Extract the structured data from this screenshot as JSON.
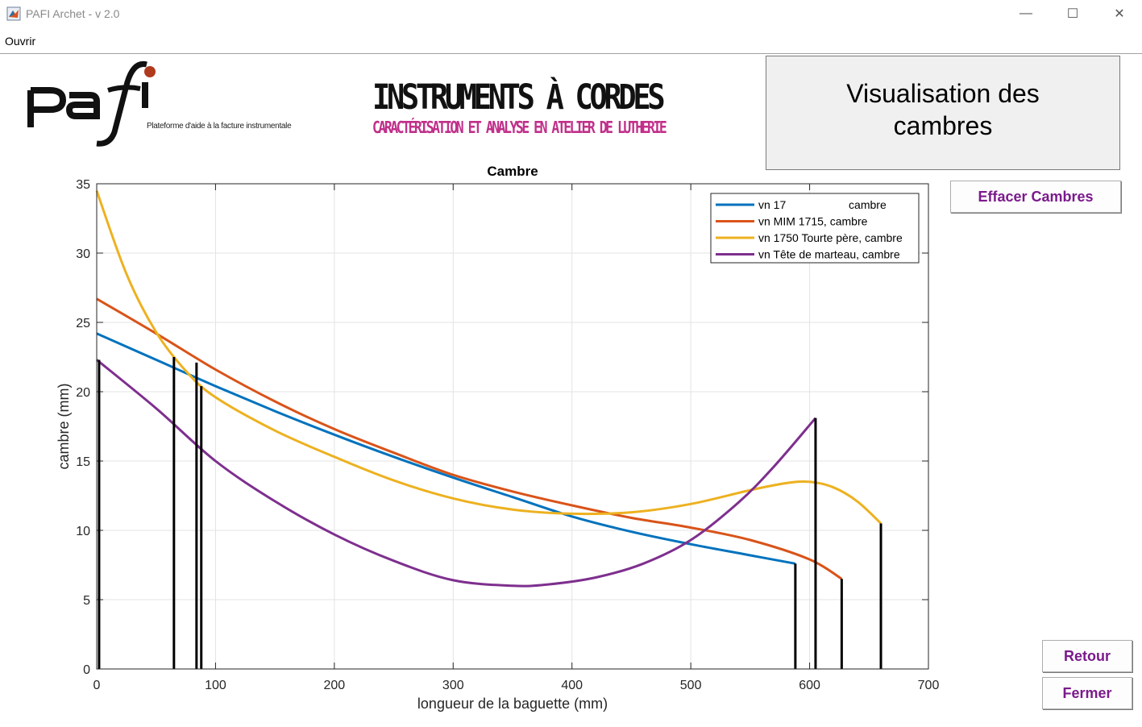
{
  "window": {
    "title": "PAFI Archet - v 2.0",
    "minimize_icon": "minimize-icon",
    "maximize_icon": "maximize-icon",
    "close_icon": "close-icon",
    "minimize_glyph": "—",
    "maximize_glyph": "☐",
    "close_glyph": "✕"
  },
  "menu": {
    "open_label": "Ouvrir"
  },
  "logo": {
    "tagline": "Plateforme d'aide à la facture instrumentale"
  },
  "banner": {
    "title": "INSTRUMENTS À CORDES",
    "subtitle": "CARACTÉRISATION ET ANALYSE EN ATELIER DE LUTHERIE"
  },
  "panel": {
    "title": "Visualisation des cambres"
  },
  "buttons": {
    "clear": "Effacer Cambres",
    "back": "Retour",
    "close": "Fermer"
  },
  "colors": {
    "accent": "#7b1a8c",
    "series_blue": "#0072bd",
    "series_orange": "#d95319",
    "series_yellow": "#edb120",
    "series_purple": "#7e2f8e",
    "pafi_red": "#b03a1e",
    "subtitle_pink": "#c0308a"
  },
  "chart_data": {
    "type": "line",
    "title": "Cambre",
    "xlabel": "longueur de la baguette (mm)",
    "ylabel": "cambre (mm)",
    "xlim": [
      0,
      700
    ],
    "ylim": [
      0,
      35
    ],
    "xticks": [
      0,
      100,
      200,
      300,
      400,
      500,
      600,
      700
    ],
    "yticks": [
      0,
      5,
      10,
      15,
      20,
      25,
      30,
      35
    ],
    "grid": true,
    "legend_position": "top-right",
    "series": [
      {
        "name": "vn 17                    cambre",
        "color": "#0072bd",
        "x": [
          0,
          50,
          100,
          150,
          200,
          250,
          300,
          350,
          400,
          450,
          500,
          550,
          588
        ],
        "y": [
          24.2,
          22.3,
          20.4,
          18.6,
          16.9,
          15.3,
          13.8,
          12.4,
          11.0,
          9.9,
          9.0,
          8.2,
          7.6
        ]
      },
      {
        "name": "vn MIM 1715, cambre",
        "color": "#d95319",
        "x": [
          0,
          50,
          100,
          150,
          200,
          250,
          300,
          350,
          400,
          450,
          500,
          550,
          600,
          627
        ],
        "y": [
          26.7,
          24.2,
          21.6,
          19.3,
          17.3,
          15.6,
          14.0,
          12.8,
          11.8,
          10.9,
          10.2,
          9.3,
          7.9,
          6.5
        ]
      },
      {
        "name": "vn 1750 Tourte père, cambre",
        "color": "#edb120",
        "x": [
          0,
          25,
          50,
          75,
          100,
          150,
          200,
          250,
          300,
          350,
          400,
          450,
          500,
          550,
          580,
          600,
          620,
          640,
          660
        ],
        "y": [
          34.5,
          28.5,
          24.3,
          21.5,
          19.6,
          17.2,
          15.3,
          13.6,
          12.3,
          11.5,
          11.2,
          11.3,
          11.9,
          12.9,
          13.4,
          13.5,
          13.1,
          12.1,
          10.5
        ]
      },
      {
        "name": "vn Tête de marteau, cambre",
        "color": "#7e2f8e",
        "x": [
          0,
          50,
          100,
          150,
          200,
          250,
          300,
          350,
          380,
          420,
          460,
          500,
          540,
          570,
          605
        ],
        "y": [
          22.3,
          18.8,
          15.0,
          12.1,
          9.7,
          7.8,
          6.4,
          6.0,
          6.1,
          6.6,
          7.6,
          9.3,
          12.0,
          14.6,
          18.1
        ]
      }
    ],
    "vertical_markers": [
      {
        "x": 2,
        "y": 22.3
      },
      {
        "x": 65,
        "y": 22.5
      },
      {
        "x": 84,
        "y": 22.1
      },
      {
        "x": 88,
        "y": 20.4
      },
      {
        "x": 588,
        "y": 7.6
      },
      {
        "x": 605,
        "y": 18.1
      },
      {
        "x": 627,
        "y": 6.5
      },
      {
        "x": 660,
        "y": 10.5
      }
    ]
  }
}
